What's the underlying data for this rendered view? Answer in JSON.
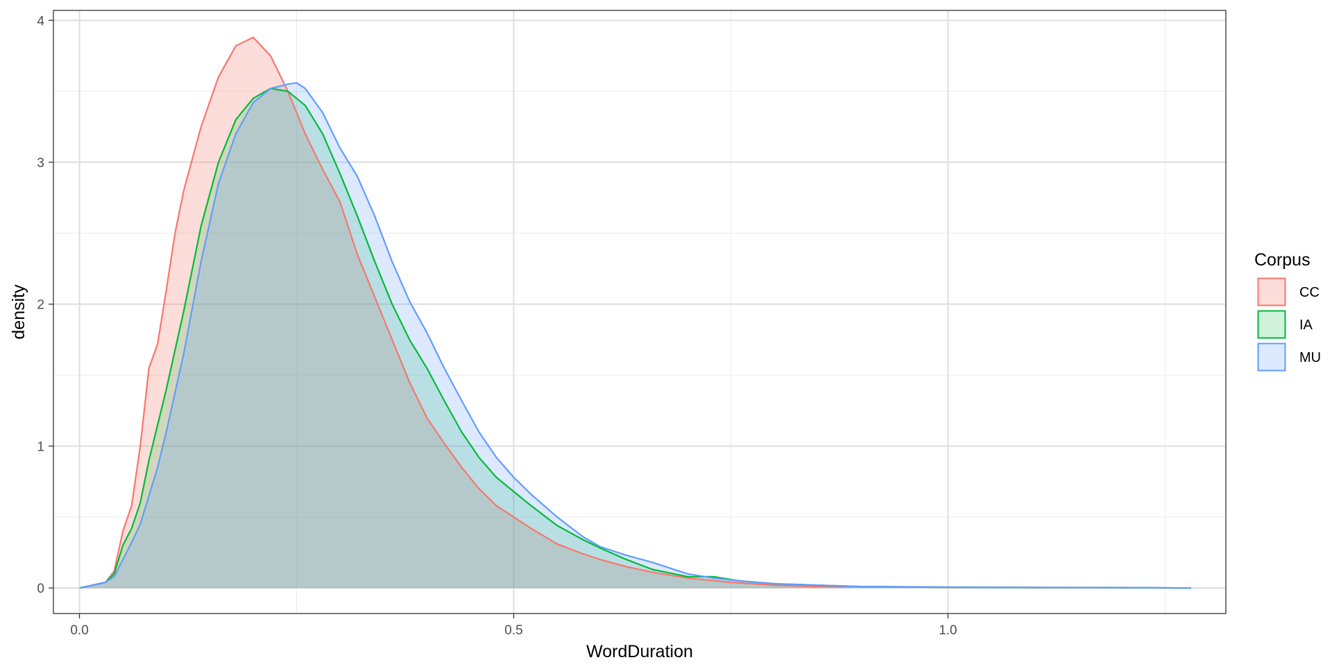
{
  "chart_data": {
    "type": "area",
    "title": "",
    "xlabel": "WordDuration",
    "ylabel": "density",
    "xlim": [
      -0.03,
      1.32
    ],
    "ylim": [
      -0.18,
      4.07
    ],
    "x_ticks": [
      {
        "value": 0.0,
        "label": "0.0"
      },
      {
        "value": 0.5,
        "label": "0.5"
      },
      {
        "value": 1.0,
        "label": "1.0"
      }
    ],
    "y_ticks": [
      {
        "value": 0,
        "label": "0"
      },
      {
        "value": 1,
        "label": "1"
      },
      {
        "value": 2,
        "label": "2"
      },
      {
        "value": 3,
        "label": "3"
      },
      {
        "value": 4,
        "label": "4"
      }
    ],
    "grid": true,
    "legend": {
      "title": "Corpus",
      "position": "right"
    },
    "series": [
      {
        "name": "CC",
        "color": "#F8766D",
        "fill": "rgba(248,118,109,0.25)",
        "points": [
          [
            0.0,
            0
          ],
          [
            0.03,
            0.04
          ],
          [
            0.04,
            0.12
          ],
          [
            0.05,
            0.4
          ],
          [
            0.06,
            0.58
          ],
          [
            0.07,
            1.0
          ],
          [
            0.08,
            1.55
          ],
          [
            0.09,
            1.72
          ],
          [
            0.1,
            2.1
          ],
          [
            0.11,
            2.5
          ],
          [
            0.12,
            2.8
          ],
          [
            0.14,
            3.25
          ],
          [
            0.16,
            3.6
          ],
          [
            0.18,
            3.82
          ],
          [
            0.2,
            3.88
          ],
          [
            0.22,
            3.75
          ],
          [
            0.24,
            3.5
          ],
          [
            0.26,
            3.2
          ],
          [
            0.28,
            2.95
          ],
          [
            0.3,
            2.72
          ],
          [
            0.32,
            2.35
          ],
          [
            0.34,
            2.05
          ],
          [
            0.36,
            1.75
          ],
          [
            0.38,
            1.45
          ],
          [
            0.4,
            1.2
          ],
          [
            0.42,
            1.02
          ],
          [
            0.44,
            0.85
          ],
          [
            0.46,
            0.7
          ],
          [
            0.48,
            0.58
          ],
          [
            0.5,
            0.5
          ],
          [
            0.52,
            0.42
          ],
          [
            0.55,
            0.31
          ],
          [
            0.58,
            0.24
          ],
          [
            0.6,
            0.2
          ],
          [
            0.63,
            0.15
          ],
          [
            0.66,
            0.11
          ],
          [
            0.7,
            0.07
          ],
          [
            0.75,
            0.04
          ],
          [
            0.8,
            0.02
          ],
          [
            0.85,
            0.01
          ],
          [
            0.9,
            0.01
          ],
          [
            1.0,
            0.005
          ],
          [
            1.1,
            0.003
          ],
          [
            1.2,
            0.002
          ],
          [
            1.28,
            0
          ]
        ]
      },
      {
        "name": "IA",
        "color": "#00BA38",
        "fill": "rgba(0,186,56,0.18)",
        "points": [
          [
            0.0,
            0
          ],
          [
            0.03,
            0.04
          ],
          [
            0.04,
            0.1
          ],
          [
            0.05,
            0.3
          ],
          [
            0.06,
            0.42
          ],
          [
            0.07,
            0.6
          ],
          [
            0.08,
            0.9
          ],
          [
            0.09,
            1.15
          ],
          [
            0.1,
            1.4
          ],
          [
            0.12,
            1.95
          ],
          [
            0.14,
            2.55
          ],
          [
            0.16,
            3.0
          ],
          [
            0.18,
            3.3
          ],
          [
            0.2,
            3.45
          ],
          [
            0.22,
            3.52
          ],
          [
            0.24,
            3.5
          ],
          [
            0.26,
            3.4
          ],
          [
            0.28,
            3.2
          ],
          [
            0.3,
            2.92
          ],
          [
            0.32,
            2.62
          ],
          [
            0.34,
            2.3
          ],
          [
            0.36,
            2.0
          ],
          [
            0.38,
            1.75
          ],
          [
            0.4,
            1.55
          ],
          [
            0.42,
            1.32
          ],
          [
            0.44,
            1.1
          ],
          [
            0.46,
            0.92
          ],
          [
            0.48,
            0.78
          ],
          [
            0.5,
            0.68
          ],
          [
            0.52,
            0.58
          ],
          [
            0.55,
            0.44
          ],
          [
            0.58,
            0.34
          ],
          [
            0.6,
            0.28
          ],
          [
            0.63,
            0.2
          ],
          [
            0.66,
            0.13
          ],
          [
            0.7,
            0.08
          ],
          [
            0.73,
            0.08
          ],
          [
            0.76,
            0.05
          ],
          [
            0.8,
            0.03
          ],
          [
            0.85,
            0.02
          ],
          [
            0.9,
            0.01
          ],
          [
            1.0,
            0.005
          ],
          [
            1.1,
            0.003
          ],
          [
            1.2,
            0.002
          ],
          [
            1.28,
            0
          ]
        ]
      },
      {
        "name": "MU",
        "color": "#619CFF",
        "fill": "rgba(97,156,255,0.22)",
        "points": [
          [
            0.0,
            0
          ],
          [
            0.03,
            0.04
          ],
          [
            0.04,
            0.08
          ],
          [
            0.05,
            0.2
          ],
          [
            0.06,
            0.32
          ],
          [
            0.07,
            0.45
          ],
          [
            0.08,
            0.65
          ],
          [
            0.09,
            0.85
          ],
          [
            0.1,
            1.1
          ],
          [
            0.12,
            1.65
          ],
          [
            0.14,
            2.3
          ],
          [
            0.16,
            2.85
          ],
          [
            0.18,
            3.2
          ],
          [
            0.2,
            3.42
          ],
          [
            0.22,
            3.52
          ],
          [
            0.24,
            3.55
          ],
          [
            0.25,
            3.56
          ],
          [
            0.26,
            3.52
          ],
          [
            0.28,
            3.35
          ],
          [
            0.3,
            3.1
          ],
          [
            0.32,
            2.9
          ],
          [
            0.34,
            2.62
          ],
          [
            0.36,
            2.3
          ],
          [
            0.38,
            2.02
          ],
          [
            0.4,
            1.8
          ],
          [
            0.42,
            1.55
          ],
          [
            0.44,
            1.32
          ],
          [
            0.46,
            1.1
          ],
          [
            0.48,
            0.92
          ],
          [
            0.5,
            0.78
          ],
          [
            0.52,
            0.66
          ],
          [
            0.55,
            0.5
          ],
          [
            0.58,
            0.36
          ],
          [
            0.6,
            0.29
          ],
          [
            0.63,
            0.23
          ],
          [
            0.66,
            0.18
          ],
          [
            0.7,
            0.1
          ],
          [
            0.73,
            0.07
          ],
          [
            0.76,
            0.05
          ],
          [
            0.8,
            0.03
          ],
          [
            0.85,
            0.02
          ],
          [
            0.9,
            0.01
          ],
          [
            1.0,
            0.006
          ],
          [
            1.1,
            0.004
          ],
          [
            1.2,
            0.003
          ],
          [
            1.28,
            0
          ]
        ]
      }
    ]
  }
}
